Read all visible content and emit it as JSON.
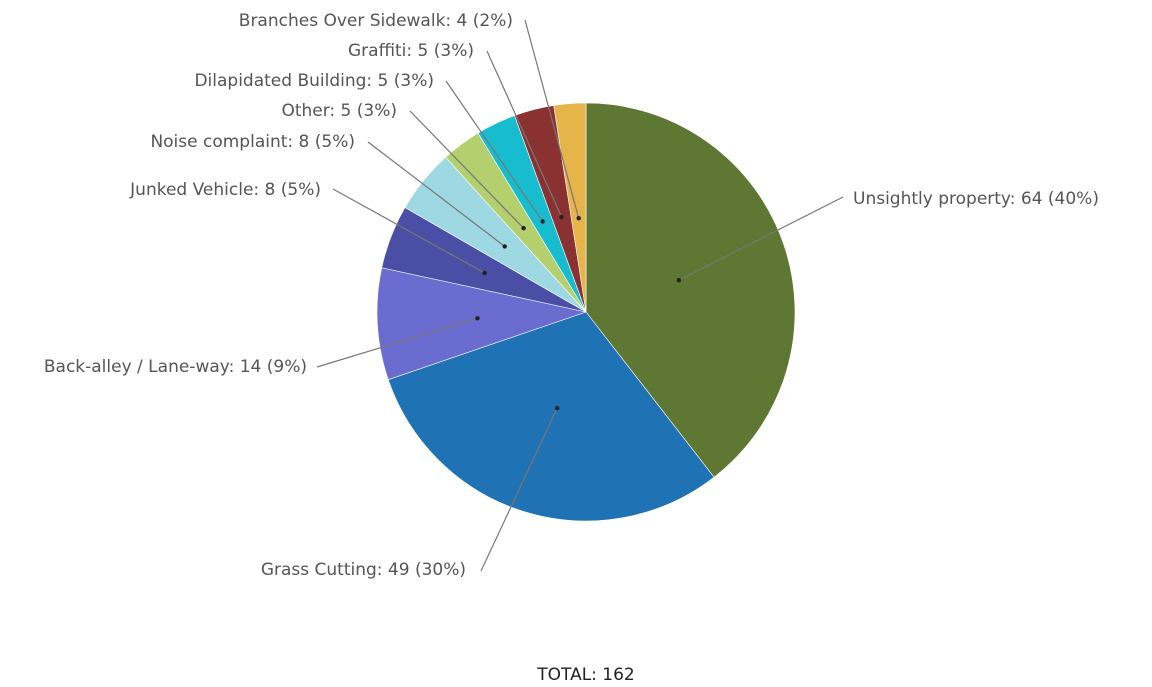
{
  "chart_data": {
    "type": "pie",
    "total_label": "TOTAL: 162",
    "slices": [
      {
        "label": "Unsightly property: 64 (40%)",
        "name": "Unsightly property",
        "value": 64,
        "percent": 40,
        "color": "#5e7733"
      },
      {
        "label": "Grass Cutting: 49 (30%)",
        "name": "Grass Cutting",
        "value": 49,
        "percent": 30,
        "color": "#1f72b3"
      },
      {
        "label": "Back-alley / Lane-way: 14 (9%)",
        "name": "Back-alley / Lane-way",
        "value": 14,
        "percent": 9,
        "color": "#6a6ccf"
      },
      {
        "label": "Junked Vehicle: 8 (5%)",
        "name": "Junked Vehicle",
        "value": 8,
        "percent": 5,
        "color": "#4a4ea4"
      },
      {
        "label": "Noise complaint: 8 (5%)",
        "name": "Noise complaint",
        "value": 8,
        "percent": 5,
        "color": "#9ed8e3"
      },
      {
        "label": "Other: 5 (3%)",
        "name": "Other",
        "value": 5,
        "percent": 3,
        "color": "#b4cf6d"
      },
      {
        "label": "Dilapidated Building: 5 (3%)",
        "name": "Dilapidated Building",
        "value": 5,
        "percent": 3,
        "color": "#18bccf"
      },
      {
        "label": "Graffiti: 5 (3%)",
        "name": "Graffiti",
        "value": 5,
        "percent": 3,
        "color": "#8a3232"
      },
      {
        "label": "Branches Over Sidewalk: 4 (2%)",
        "name": "Branches Over Sidewalk",
        "value": 4,
        "percent": 2,
        "color": "#e5b54b"
      }
    ]
  }
}
